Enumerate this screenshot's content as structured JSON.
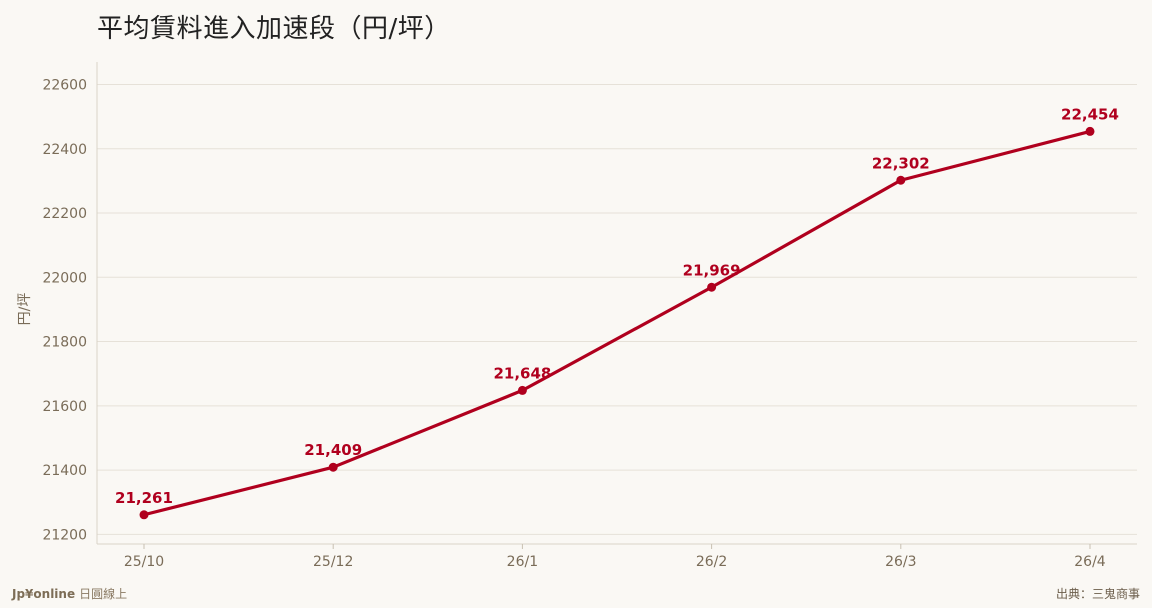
{
  "chart_data": {
    "type": "line",
    "title": "平均賃料進入加速段（円/坪）",
    "xlabel": "",
    "ylabel": "円/坪",
    "categories": [
      "25/10",
      "25/12",
      "26/1",
      "26/2",
      "26/3",
      "26/4"
    ],
    "series": [
      {
        "values": [
          21261,
          21409,
          21648,
          21969,
          22302,
          22454
        ],
        "labels": [
          "21,261",
          "21,409",
          "21,648",
          "21,969",
          "22,302",
          "22,454"
        ]
      }
    ],
    "yticks": [
      21200,
      21400,
      21600,
      21800,
      22000,
      22200,
      22400,
      22600
    ],
    "ylim": [
      21170,
      22670
    ],
    "grid": true,
    "line_color": "#b0001e"
  },
  "footer": {
    "brand": "Jp¥online",
    "brand_sub": "日圓線上",
    "source": "出典：三鬼商事"
  }
}
